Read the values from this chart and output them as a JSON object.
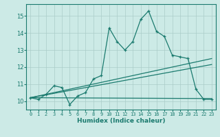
{
  "xlabel": "Humidex (Indice chaleur)",
  "bg_color": "#cceae6",
  "line_color": "#1a7a6e",
  "grid_color": "#aaccc8",
  "x_ticks": [
    0,
    1,
    2,
    3,
    4,
    5,
    6,
    7,
    8,
    9,
    10,
    11,
    12,
    13,
    14,
    15,
    16,
    17,
    18,
    19,
    20,
    21,
    22,
    23
  ],
  "y_ticks": [
    10,
    11,
    12,
    13,
    14,
    15
  ],
  "ylim": [
    9.5,
    15.7
  ],
  "xlim": [
    -0.5,
    23.5
  ],
  "series1_x": [
    0,
    1,
    2,
    3,
    4,
    5,
    6,
    7,
    8,
    9,
    10,
    11,
    12,
    13,
    14,
    15,
    16,
    17,
    18,
    19,
    20,
    21,
    22,
    23
  ],
  "series1_y": [
    10.2,
    10.1,
    10.4,
    10.9,
    10.8,
    9.8,
    10.3,
    10.5,
    11.3,
    11.5,
    14.3,
    13.5,
    13.0,
    13.5,
    14.8,
    15.3,
    14.1,
    13.8,
    12.7,
    12.6,
    12.5,
    10.7,
    10.1,
    10.1
  ],
  "trend1_x": [
    0,
    23
  ],
  "trend1_y": [
    10.2,
    12.5
  ],
  "trend2_x": [
    0,
    23
  ],
  "trend2_y": [
    10.2,
    12.15
  ],
  "trend3_x": [
    0,
    23
  ],
  "trend3_y": [
    10.2,
    10.15
  ]
}
